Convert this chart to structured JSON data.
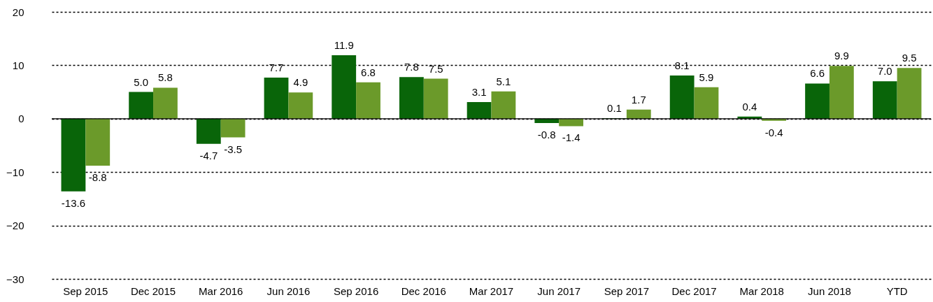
{
  "chart_data": {
    "type": "bar",
    "categories": [
      "Sep 2015",
      "Dec 2015",
      "Mar 2016",
      "Jun 2016",
      "Sep 2016",
      "Dec 2016",
      "Mar 2017",
      "Jun 2017",
      "Sep 2017",
      "Dec 2017",
      "Mar 2018",
      "Jun 2018",
      "YTD"
    ],
    "series": [
      {
        "color": "#096509",
        "values": [
          -13.6,
          5.0,
          -4.7,
          7.7,
          11.9,
          7.8,
          3.1,
          -0.8,
          0.1,
          8.1,
          0.4,
          6.6,
          7.0
        ],
        "value_labels": [
          "-13.6",
          "5.0",
          "-4.7",
          "7.7",
          "11.9",
          "7.8",
          "3.1",
          "-0.8",
          "0.1",
          "8.1",
          "0.4",
          "6.6",
          "7.0"
        ]
      },
      {
        "color": "#6b9a2a",
        "values": [
          -8.8,
          5.8,
          -3.5,
          4.9,
          6.8,
          7.5,
          5.1,
          -1.4,
          1.7,
          5.9,
          -0.4,
          9.9,
          9.5
        ],
        "value_labels": [
          "-8.8",
          "5.8",
          "-3.5",
          "4.9",
          "6.8",
          "7.5",
          "5.1",
          "-1.4",
          "1.7",
          "5.9",
          "-0.4",
          "9.9",
          "9.5"
        ]
      }
    ],
    "ylim": [
      -30,
      20
    ],
    "yticks": [
      -30,
      -20,
      -10,
      0,
      10,
      20
    ],
    "grid": "y",
    "ref_lines": [
      {
        "axis": "y",
        "value": 0,
        "color": "#000000"
      }
    ]
  }
}
